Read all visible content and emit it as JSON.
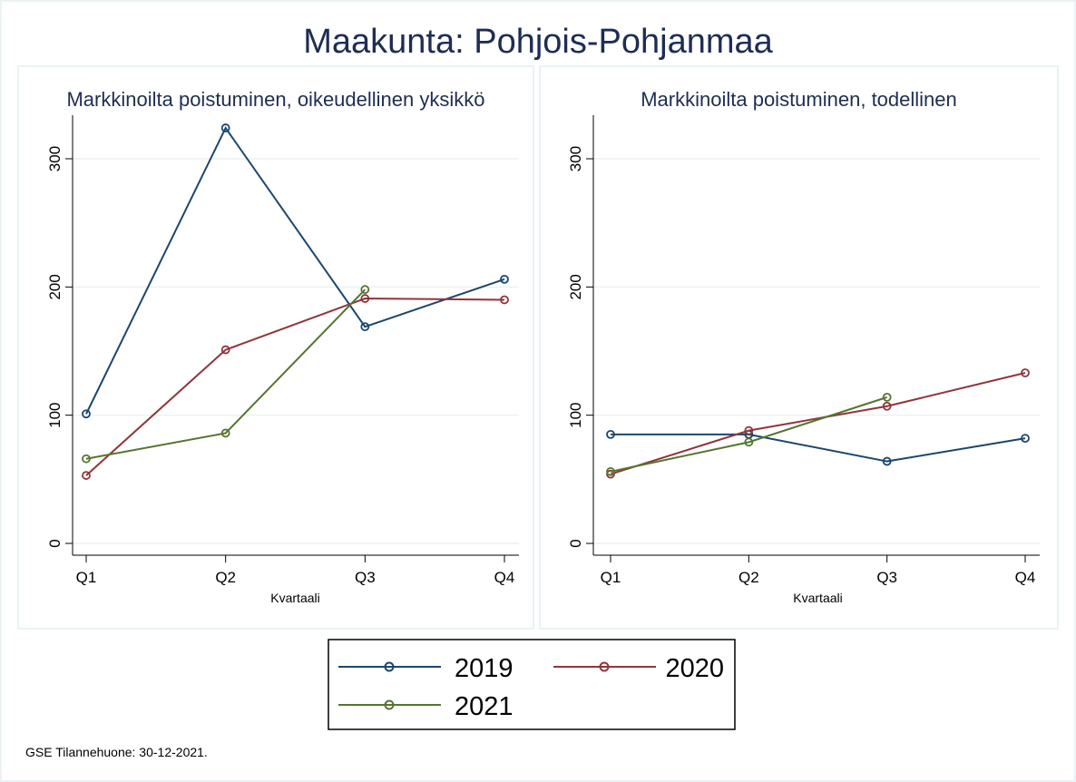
{
  "title": "Maakunta: Pohjois-Pohjanmaa",
  "footnote": "GSE Tilannehuone: 30-12-2021.",
  "colors": {
    "2019": "#1a476f",
    "2020": "#90353b",
    "2021": "#55752f"
  },
  "chart_data": [
    {
      "type": "line",
      "title": "Markkinoilta poistuminen, oikeudellinen yksikkö",
      "xlabel": "Kvartaali",
      "ylabel": "",
      "categories": [
        "Q1",
        "Q2",
        "Q3",
        "Q4"
      ],
      "yticks": [
        0,
        100,
        200,
        300
      ],
      "ylim": [
        0,
        330
      ],
      "grid": true,
      "series": [
        {
          "name": "2019",
          "values": [
            101,
            324,
            169,
            206
          ]
        },
        {
          "name": "2020",
          "values": [
            53,
            151,
            191,
            190
          ]
        },
        {
          "name": "2021",
          "values": [
            66,
            86,
            198,
            null
          ]
        }
      ]
    },
    {
      "type": "line",
      "title": "Markkinoilta poistuminen, todellinen",
      "xlabel": "Kvartaali",
      "ylabel": "",
      "categories": [
        "Q1",
        "Q2",
        "Q3",
        "Q4"
      ],
      "yticks": [
        0,
        100,
        200,
        300
      ],
      "ylim": [
        0,
        330
      ],
      "grid": true,
      "series": [
        {
          "name": "2019",
          "values": [
            85,
            85,
            64,
            82
          ]
        },
        {
          "name": "2020",
          "values": [
            54,
            88,
            107,
            133
          ]
        },
        {
          "name": "2021",
          "values": [
            56,
            79,
            114,
            null
          ]
        }
      ]
    }
  ],
  "legend": {
    "placement": "bottom",
    "items": [
      "2019",
      "2020",
      "2021"
    ]
  }
}
